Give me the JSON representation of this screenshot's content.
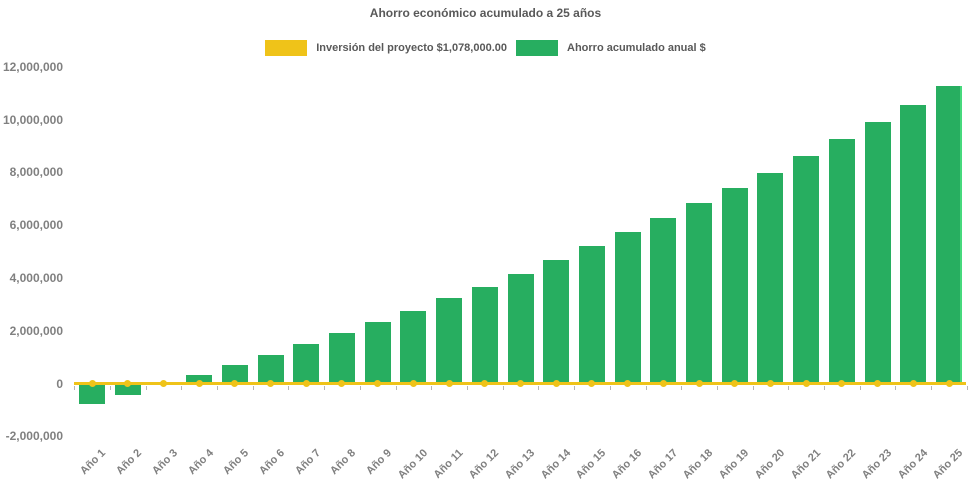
{
  "title": "Ahorro económico acumulado a 25 años",
  "legend": {
    "items": [
      {
        "label": "Inversión del proyecto $1,078,000.00",
        "series": "investment-line",
        "color": "#EFC319"
      },
      {
        "label": "Ahorro acumulado anual $",
        "series": "savings-bars",
        "color": "#27AE60"
      }
    ],
    "position": "top-center"
  },
  "colors": {
    "bar_green": "#27AE60",
    "bar_green_highlight": "#46D97C",
    "line_yellow": "#EFC319",
    "title_text": "#595959",
    "axis_text": "#808080",
    "background": "#FFFFFF"
  },
  "chart_data": {
    "type": "bar",
    "title": "Ahorro económico acumulado a 25 años",
    "xlabel": "",
    "ylabel": "",
    "grid": false,
    "legend_position": "top",
    "ylim": [
      -2000000,
      12000000
    ],
    "yticks": [
      {
        "label": "12,000,000",
        "value": 12000000
      },
      {
        "label": "10,000,000",
        "value": 10000000
      },
      {
        "label": "8,000,000",
        "value": 8000000
      },
      {
        "label": "6,000,000",
        "value": 6000000
      },
      {
        "label": "4,000,000",
        "value": 4000000
      },
      {
        "label": "2,000,000",
        "value": 2000000
      },
      {
        "label": "0",
        "value": 0
      },
      {
        "label": "-2,000,000",
        "value": -2000000
      }
    ],
    "categories": [
      "Año 1",
      "Año 2",
      "Año 3",
      "Año 4",
      "Año 5",
      "Año 6",
      "Año 7",
      "Año 8",
      "Año 9",
      "Año 10",
      "Año 11",
      "Año 12",
      "Año 13",
      "Año 14",
      "Año 15",
      "Año 16",
      "Año 17",
      "Año 18",
      "Año 19",
      "Año 20",
      "Año 21",
      "Año 22",
      "Año 23",
      "Año 24",
      "Año 25"
    ],
    "series": [
      {
        "name": "Ahorro acumulado anual $",
        "type": "bar",
        "color": "#27AE60",
        "values": [
          -760000,
          -450000,
          -30000,
          320000,
          690000,
          1080000,
          1480000,
          1900000,
          2320000,
          2750000,
          3230000,
          3670000,
          4150000,
          4680000,
          5210000,
          5740000,
          6270000,
          6840000,
          7410000,
          7970000,
          8620000,
          9260000,
          9910000,
          10550000,
          11270000
        ]
      },
      {
        "name": "Inversión del proyecto $1,078,000.00",
        "type": "line",
        "color": "#EFC319",
        "marker": "circle",
        "investment_amount_label": "$1,078,000.00",
        "values": [
          0,
          0,
          0,
          0,
          0,
          0,
          0,
          0,
          0,
          0,
          0,
          0,
          0,
          0,
          0,
          0,
          0,
          0,
          0,
          0,
          0,
          0,
          0,
          0,
          0
        ]
      }
    ]
  }
}
